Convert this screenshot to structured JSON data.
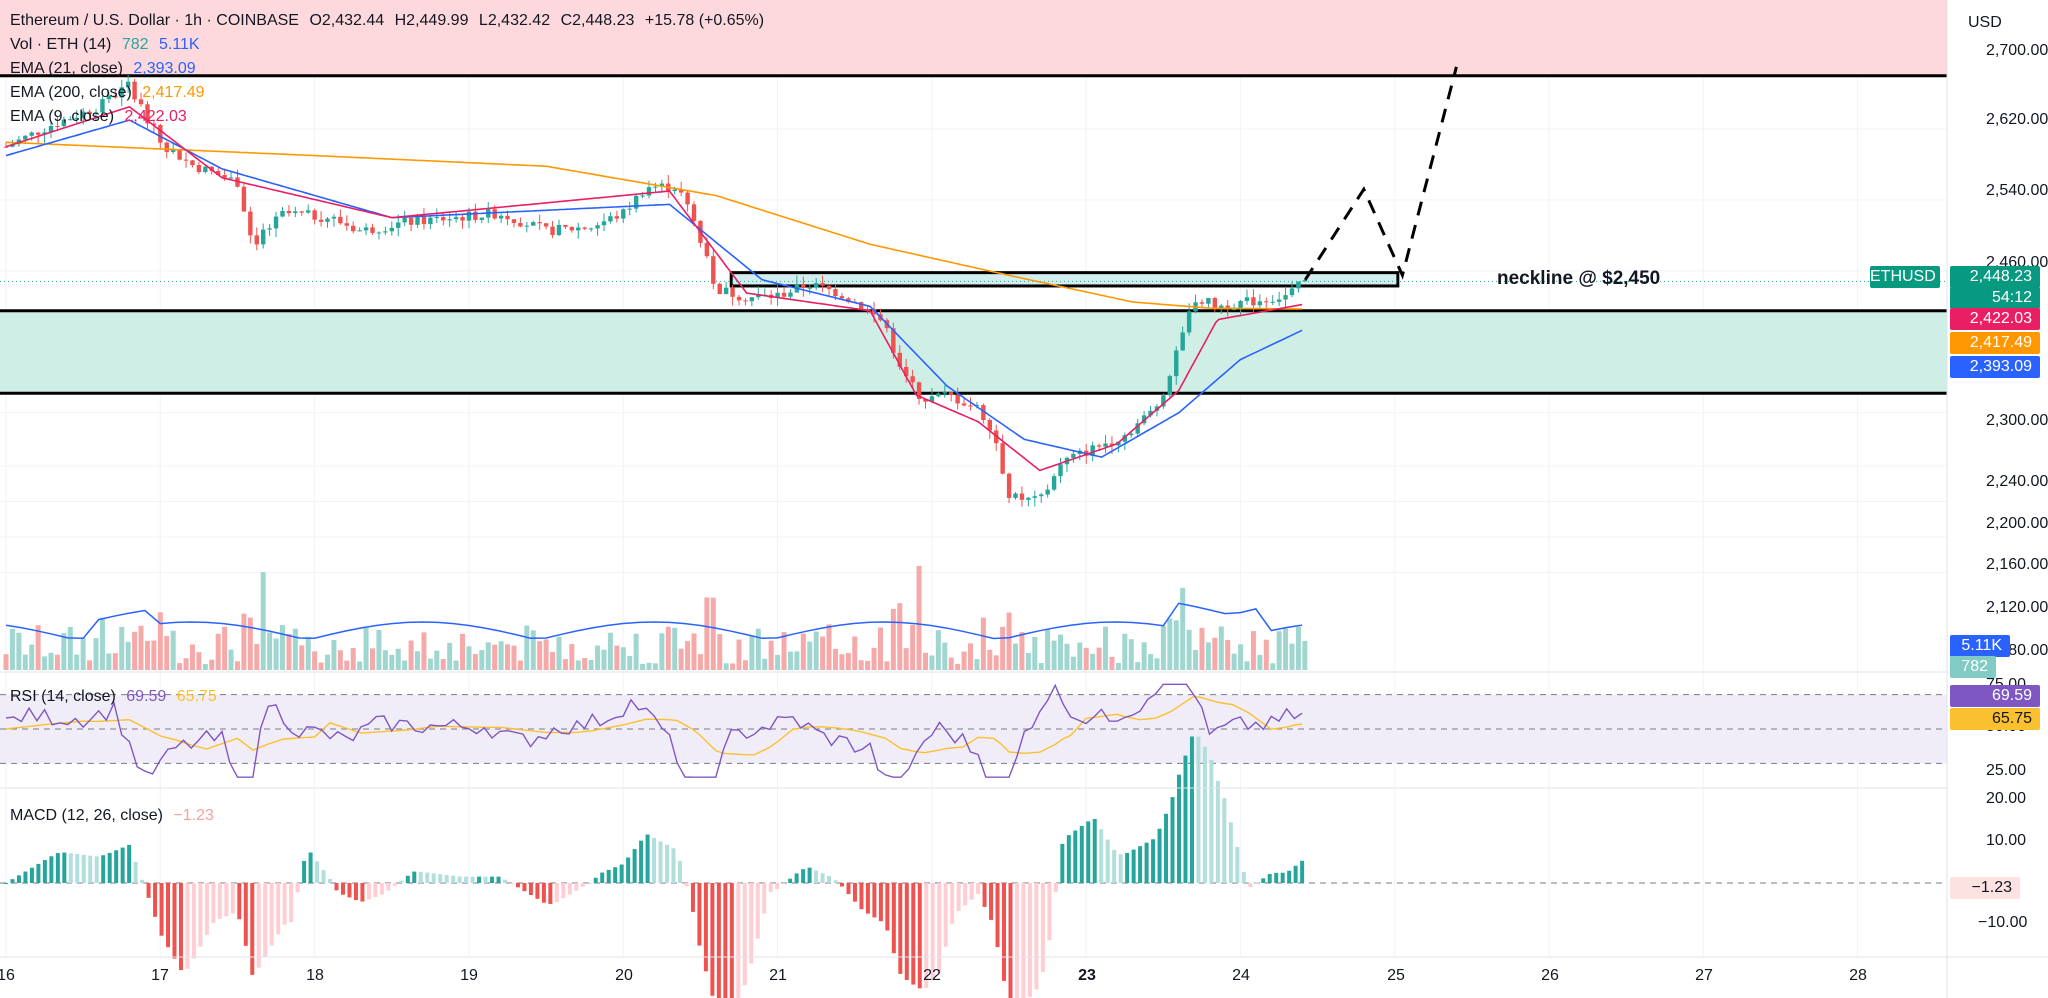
{
  "legend": {
    "symbol": "Ethereum / U.S. Dollar · 1h · COINBASE",
    "open": "O2,432.44",
    "high": "H2,449.99",
    "low": "L2,432.42",
    "close": "C2,448.23",
    "change": "+15.78 (+0.65%)",
    "vol_label": "Vol · ETH (14)",
    "vol_value": "782",
    "vol_ma": "5.11K",
    "ema21_label": "EMA (21, close)",
    "ema21_value": "2,393.09",
    "ema200_label": "EMA (200, close)",
    "ema200_value": "2,417.49",
    "ema9_label": "EMA (9, close)",
    "ema9_value": "2,422.03",
    "rsi_label": "RSI (14, close)",
    "rsi_value": "69.59",
    "rsi_ma": "65.75",
    "macd_label": "MACD (12, 26, close)",
    "macd_value": "−1.23"
  },
  "annotation": {
    "neckline": "neckline @ $2,450"
  },
  "axis": {
    "currency": "USD",
    "price_ticks": [
      "2,700.00",
      "2,620.00",
      "2,540.00",
      "2,460.00",
      "2,300.00",
      "2,240.00",
      "2,200.00",
      "2,160.00",
      "2,120.00",
      "2,080.00"
    ],
    "rsi_ticks": [
      "75.00",
      "50.00",
      "25.00"
    ],
    "macd_ticks": [
      "20.00",
      "10.00",
      "−10.00"
    ],
    "date_ticks": [
      "16",
      "17",
      "18",
      "19",
      "20",
      "21",
      "22",
      "23",
      "24",
      "25",
      "26",
      "27",
      "28"
    ]
  },
  "tags": {
    "ethusd_label": "ETHUSD",
    "price": "2,448.23",
    "countdown": "54:12",
    "ema9": "2,422.03",
    "ema200": "2,417.49",
    "ema21": "2,393.09",
    "vol_ma": "5.11K",
    "vol": "782",
    "rsi": "69.59",
    "rsi_ma": "65.75",
    "macd": "−1.23"
  },
  "colors": {
    "up": "#26a69a",
    "down": "#ef5350",
    "ema9": "#e91e63",
    "ema21": "#2962ff",
    "ema200": "#ff9800",
    "rsi": "#7e57c2",
    "rsi_ma": "#fbc02d",
    "supply_zone": "#fdd9dd",
    "demand_zone": "#cfeee6"
  },
  "chart_data": {
    "type": "candlestick",
    "title": "Ethereum / U.S. Dollar · 1h · COINBASE",
    "x": [
      "16",
      "17",
      "18",
      "19",
      "20",
      "21",
      "22",
      "23",
      "24",
      "25",
      "26",
      "27",
      "28"
    ],
    "ylim": [
      2080,
      2720
    ],
    "price_path": [
      [
        16.0,
        2600
      ],
      [
        16.3,
        2625
      ],
      [
        16.6,
        2645
      ],
      [
        16.8,
        2670
      ],
      [
        17.0,
        2605
      ],
      [
        17.2,
        2580
      ],
      [
        17.5,
        2560
      ],
      [
        17.6,
        2490
      ],
      [
        17.8,
        2525
      ],
      [
        18.1,
        2520
      ],
      [
        18.3,
        2505
      ],
      [
        18.6,
        2515
      ],
      [
        18.9,
        2520
      ],
      [
        19.2,
        2525
      ],
      [
        19.5,
        2505
      ],
      [
        19.8,
        2510
      ],
      [
        20.0,
        2525
      ],
      [
        20.15,
        2555
      ],
      [
        20.35,
        2555
      ],
      [
        20.45,
        2520
      ],
      [
        20.6,
        2440
      ],
      [
        20.8,
        2430
      ],
      [
        21.0,
        2432
      ],
      [
        21.2,
        2445
      ],
      [
        21.4,
        2435
      ],
      [
        21.55,
        2420
      ],
      [
        21.7,
        2400
      ],
      [
        21.8,
        2345
      ],
      [
        21.95,
        2315
      ],
      [
        22.1,
        2320
      ],
      [
        22.3,
        2305
      ],
      [
        22.4,
        2280
      ],
      [
        22.5,
        2205
      ],
      [
        22.7,
        2200
      ],
      [
        22.85,
        2245
      ],
      [
        23.05,
        2260
      ],
      [
        23.25,
        2275
      ],
      [
        23.45,
        2305
      ],
      [
        23.55,
        2345
      ],
      [
        23.7,
        2430
      ],
      [
        23.85,
        2420
      ],
      [
        24.05,
        2425
      ],
      [
        24.3,
        2432
      ],
      [
        24.42,
        2448
      ]
    ],
    "ema200_path": [
      [
        16.0,
        2605
      ],
      [
        18.0,
        2590
      ],
      [
        19.5,
        2578
      ],
      [
        20.6,
        2545
      ],
      [
        21.6,
        2490
      ],
      [
        22.5,
        2455
      ],
      [
        23.3,
        2425
      ],
      [
        23.8,
        2418
      ],
      [
        24.4,
        2417
      ]
    ],
    "ema21_path": [
      [
        16.0,
        2590
      ],
      [
        16.8,
        2630
      ],
      [
        17.4,
        2575
      ],
      [
        18.5,
        2520
      ],
      [
        20.3,
        2535
      ],
      [
        20.9,
        2450
      ],
      [
        21.6,
        2420
      ],
      [
        22.1,
        2330
      ],
      [
        22.6,
        2270
      ],
      [
        23.1,
        2250
      ],
      [
        23.6,
        2300
      ],
      [
        24.0,
        2360
      ],
      [
        24.4,
        2393
      ]
    ],
    "ema9_path": [
      [
        16.0,
        2600
      ],
      [
        16.8,
        2645
      ],
      [
        17.4,
        2565
      ],
      [
        18.5,
        2520
      ],
      [
        20.3,
        2550
      ],
      [
        20.8,
        2435
      ],
      [
        21.6,
        2415
      ],
      [
        21.9,
        2320
      ],
      [
        22.3,
        2290
      ],
      [
        22.7,
        2235
      ],
      [
        23.2,
        2265
      ],
      [
        23.6,
        2325
      ],
      [
        23.85,
        2405
      ],
      [
        24.4,
        2422
      ]
    ],
    "neckline": 2450,
    "zones": {
      "supply": [
        2680,
        2760
      ],
      "demand": [
        2322,
        2415
      ],
      "neckline_box": [
        2443,
        2458
      ]
    },
    "projection": [
      [
        24.42,
        2450
      ],
      [
        24.8,
        2552
      ],
      [
        25.05,
        2455
      ],
      [
        25.4,
        2690
      ]
    ],
    "rsi": {
      "value": 69.59,
      "ma": 65.75,
      "levels": [
        70,
        50,
        30
      ],
      "ylim": [
        15,
        80
      ]
    },
    "macd": {
      "value": -1.23,
      "ylim": [
        -15,
        22
      ]
    },
    "volume_ma": 5.11,
    "volume": 782
  }
}
